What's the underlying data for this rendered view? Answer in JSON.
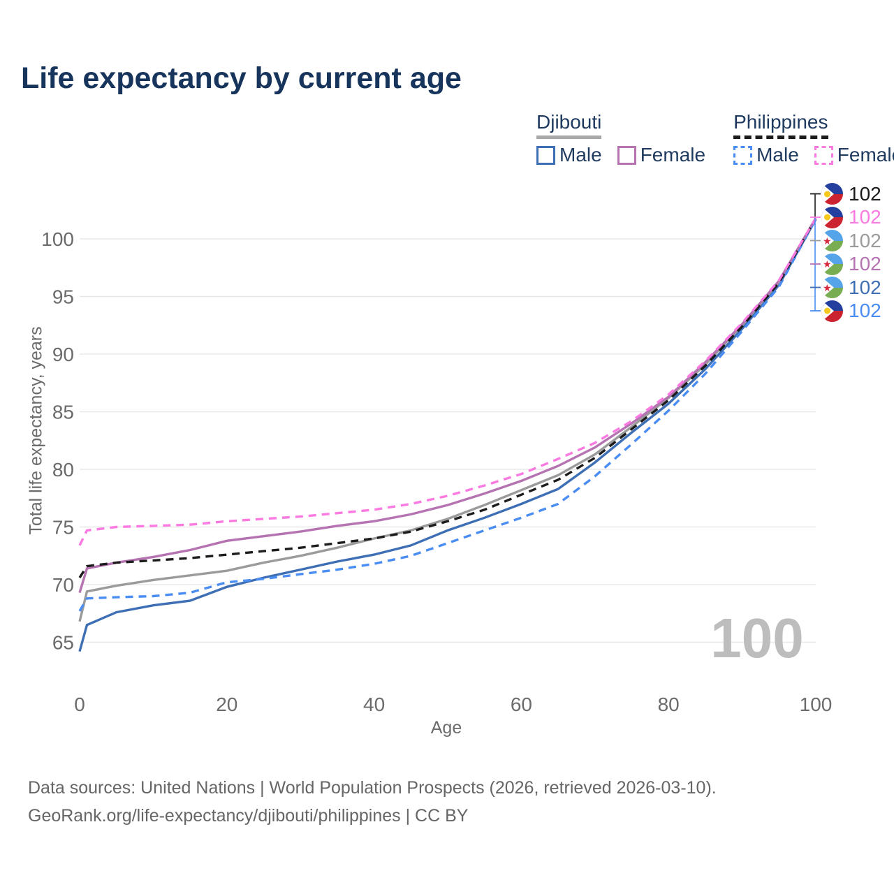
{
  "title": "Life expectancy by current age",
  "colors": {
    "title": "#16345c",
    "legend_text": "#1f3a5f",
    "axis": "#6b6b6b",
    "grid": "#e8e8e8",
    "watermark": "#bdbdbd",
    "footer": "#666666",
    "dj_male": "#3e6fb5",
    "dj_female": "#b573b2",
    "dj_both": "#9b9b9b",
    "ph_male": "#4a8df2",
    "ph_female": "#fb7ae1",
    "ph_both": "#1c1c1c"
  },
  "legend": {
    "groups": [
      {
        "title": "Djibouti",
        "underline": "solid",
        "underline_color": "#a8a8a8",
        "items": [
          {
            "label": "Male",
            "color": "#3e6fb5",
            "dash": "solid"
          },
          {
            "label": "Female",
            "color": "#b573b2",
            "dash": "solid"
          }
        ]
      },
      {
        "title": "Philippines",
        "underline": "dashed",
        "underline_color": "#1c1c1c",
        "items": [
          {
            "label": "Male",
            "color": "#4a8df2",
            "dash": "dashed"
          },
          {
            "label": "Female",
            "color": "#fb7ae1",
            "dash": "dashed"
          }
        ]
      }
    ]
  },
  "flags": {
    "ph": {
      "top": "#24409e",
      "bottom": "#cc2331",
      "emblem": "#f6c71d",
      "emblem_shape": "sun"
    },
    "dj": {
      "top": "#55a3e8",
      "bottom": "#79ad52",
      "emblem": "#d5283a",
      "emblem_shape": "star"
    }
  },
  "chart_data": {
    "type": "line",
    "title": "Life expectancy by current age",
    "xlabel": "Age",
    "ylabel": "Total life expectancy, years",
    "xlim": [
      0,
      100
    ],
    "ylim": [
      63.5,
      103.5
    ],
    "x_ticks": [
      0,
      20,
      40,
      60,
      80,
      100
    ],
    "y_ticks": [
      65,
      70,
      75,
      80,
      85,
      90,
      95,
      100
    ],
    "grid": "horizontal",
    "legend_position": "top-right",
    "hover_age": "100",
    "x": [
      0,
      1,
      5,
      10,
      15,
      20,
      25,
      30,
      35,
      40,
      45,
      50,
      55,
      60,
      65,
      70,
      75,
      80,
      85,
      90,
      95,
      100
    ],
    "series": [
      {
        "id": "dj_male",
        "name": "Djibouti Male",
        "color": "#3e6fb5",
        "dash": "solid",
        "values": [
          64.2,
          66.5,
          67.6,
          68.2,
          68.6,
          69.8,
          70.6,
          71.3,
          72.0,
          72.6,
          73.4,
          74.7,
          75.8,
          77.0,
          78.3,
          80.6,
          83.2,
          85.7,
          88.7,
          92.2,
          96.0,
          101.7
        ]
      },
      {
        "id": "dj_both",
        "name": "Djibouti Both sexes",
        "color": "#9b9b9b",
        "dash": "solid",
        "values": [
          66.8,
          69.4,
          69.9,
          70.4,
          70.8,
          71.2,
          71.9,
          72.5,
          73.2,
          74.0,
          74.7,
          75.7,
          76.9,
          78.2,
          79.5,
          81.3,
          83.7,
          86.2,
          89.1,
          92.5,
          96.25,
          101.8
        ]
      },
      {
        "id": "ph_male",
        "name": "Philippines Male",
        "color": "#4a8df2",
        "dash": "dashed",
        "values": [
          67.7,
          68.8,
          68.9,
          69.0,
          69.3,
          70.2,
          70.5,
          70.9,
          71.3,
          71.8,
          72.5,
          73.6,
          74.7,
          75.8,
          77.0,
          79.4,
          82.2,
          85.1,
          88.3,
          92.0,
          95.85,
          101.7
        ]
      },
      {
        "id": "dj_female",
        "name": "Djibouti Female",
        "color": "#b573b2",
        "dash": "solid",
        "values": [
          69.3,
          71.4,
          71.9,
          72.4,
          73.0,
          73.8,
          74.2,
          74.6,
          75.1,
          75.5,
          76.1,
          76.9,
          77.9,
          79.0,
          80.3,
          81.9,
          84.0,
          86.3,
          89.3,
          92.6,
          96.35,
          101.8
        ]
      },
      {
        "id": "ph_both",
        "name": "Philippines Both sexes",
        "color": "#1c1c1c",
        "dash": "dashed",
        "values": [
          70.6,
          71.6,
          71.9,
          72.1,
          72.3,
          72.6,
          72.9,
          73.2,
          73.6,
          74.0,
          74.6,
          75.5,
          76.5,
          77.8,
          79.1,
          81.0,
          83.5,
          86.0,
          89.0,
          92.4,
          96.2,
          101.8
        ]
      },
      {
        "id": "ph_female",
        "name": "Philippines Female",
        "color": "#fb7ae1",
        "dash": "dashed",
        "values": [
          73.4,
          74.7,
          75.0,
          75.1,
          75.2,
          75.5,
          75.7,
          75.9,
          76.2,
          76.5,
          77.0,
          77.7,
          78.6,
          79.6,
          80.9,
          82.3,
          84.2,
          86.5,
          89.4,
          92.7,
          96.4,
          101.8
        ]
      }
    ],
    "end_labels": [
      {
        "value": "102",
        "flag": "ph",
        "color": "#1c1c1c",
        "series": "Philippines Both sexes"
      },
      {
        "value": "102",
        "flag": "ph",
        "color": "#fb7ae1",
        "series": "Philippines Female"
      },
      {
        "value": "102",
        "flag": "dj",
        "color": "#9b9b9b",
        "series": "Djibouti Both sexes"
      },
      {
        "value": "102",
        "flag": "dj",
        "color": "#b573b2",
        "series": "Djibouti Female"
      },
      {
        "value": "102",
        "flag": "dj",
        "color": "#3e6fb5",
        "series": "Djibouti Male"
      },
      {
        "value": "102",
        "flag": "ph",
        "color": "#4a8df2",
        "series": "Philippines Male"
      }
    ]
  },
  "watermark": "100",
  "footer": {
    "line1": "Data sources: United Nations | World Population Prospects (2026, retrieved 2026-03-10).",
    "line2": "GeoRank.org/life-expectancy/djibouti/philippines | CC BY"
  }
}
